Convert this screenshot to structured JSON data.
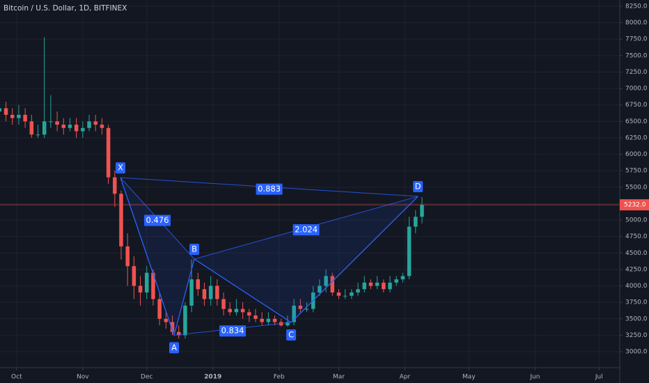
{
  "chart_data": {
    "type": "candlestick",
    "title": "Bitcoin / U.S. Dollar, 1D, BITFINEX",
    "open": [
      6650,
      6700,
      6600,
      6550,
      6600,
      6500,
      6300,
      6300,
      6500,
      6500,
      6450,
      6400,
      6450,
      6350,
      6400,
      6500,
      6450,
      6400,
      5650,
      5400,
      4600,
      4300,
      4000,
      3900,
      4200,
      3800,
      3500,
      3450,
      3300,
      3250,
      3700,
      4100,
      3950,
      3800,
      4000,
      3800,
      3650,
      3600,
      3650,
      3600,
      3550,
      3500,
      3450,
      3500,
      3450,
      3400,
      3450,
      3700,
      3650,
      3650,
      3900,
      4000,
      4150,
      3900,
      3850,
      3850,
      3900,
      3950,
      4050,
      4000,
      4050,
      3950,
      4050,
      4100,
      4150,
      4900,
      5050
    ],
    "high": [
      6850,
      6800,
      6700,
      6750,
      6700,
      6600,
      6450,
      7780,
      6900,
      6650,
      6550,
      6550,
      6550,
      6500,
      6600,
      6600,
      6550,
      6450,
      5750,
      5450,
      4800,
      4450,
      4150,
      4300,
      4250,
      3900,
      3600,
      3550,
      3400,
      3750,
      4400,
      4200,
      4050,
      4150,
      4100,
      3900,
      3750,
      3800,
      3750,
      3650,
      3650,
      3600,
      3600,
      3550,
      3500,
      3550,
      3800,
      3800,
      3750,
      4000,
      4100,
      4250,
      4200,
      3950,
      3950,
      3950,
      4050,
      4150,
      4100,
      4150,
      4100,
      4150,
      4150,
      4200,
      5050,
      5150,
      5350
    ],
    "low": [
      6550,
      6500,
      6450,
      6450,
      6400,
      6250,
      6250,
      6250,
      6400,
      6350,
      6300,
      6350,
      6250,
      6250,
      6350,
      6350,
      6300,
      5550,
      5200,
      4400,
      4000,
      3800,
      3700,
      3800,
      3700,
      3400,
      3350,
      3250,
      3200,
      3200,
      3600,
      3850,
      3700,
      3700,
      3700,
      3550,
      3550,
      3550,
      3500,
      3450,
      3450,
      3400,
      3400,
      3400,
      3380,
      3380,
      3400,
      3600,
      3600,
      3600,
      3850,
      3900,
      3850,
      3800,
      3800,
      3800,
      3850,
      3900,
      3950,
      3950,
      3900,
      3900,
      4000,
      4050,
      4100,
      4800,
      4950
    ],
    "close": [
      6700,
      6600,
      6550,
      6600,
      6500,
      6300,
      6300,
      6500,
      6500,
      6450,
      6400,
      6450,
      6350,
      6400,
      6500,
      6450,
      6400,
      5650,
      5400,
      4600,
      4300,
      4000,
      3900,
      4200,
      3800,
      3500,
      3450,
      3300,
      3250,
      3700,
      4100,
      3950,
      3800,
      4000,
      3800,
      3650,
      3600,
      3650,
      3600,
      3550,
      3500,
      3450,
      3500,
      3450,
      3400,
      3450,
      3700,
      3650,
      3650,
      3900,
      4000,
      4150,
      3900,
      3850,
      3850,
      3900,
      3950,
      4050,
      4000,
      4050,
      3950,
      4050,
      4100,
      4150,
      4900,
      5050,
      5232
    ],
    "up_color": "#26a69a",
    "down_color": "#ef5350",
    "xlim": [
      0.07,
      96.9
    ],
    "ylim": [
      2757,
      8345
    ],
    "xticks": [
      {
        "value": 2.67,
        "label": "Oct"
      },
      {
        "value": 13,
        "label": "Nov"
      },
      {
        "value": 23,
        "label": "Dec"
      },
      {
        "value": 33.33,
        "label": "2019"
      },
      {
        "value": 43.67,
        "label": "Feb"
      },
      {
        "value": 53,
        "label": "Mar"
      },
      {
        "value": 63.33,
        "label": "Apr"
      },
      {
        "value": 73.33,
        "label": "May"
      },
      {
        "value": 83.67,
        "label": "Jun"
      },
      {
        "value": 93.67,
        "label": "Jul"
      }
    ],
    "yticks": [
      {
        "value": 3000,
        "label": "3000.0"
      },
      {
        "value": 3250,
        "label": "3250.0"
      },
      {
        "value": 3500,
        "label": "3500.0"
      },
      {
        "value": 3750,
        "label": "3750.0"
      },
      {
        "value": 4000,
        "label": "4000.0"
      },
      {
        "value": 4250,
        "label": "4250.0"
      },
      {
        "value": 4500,
        "label": "4500.0"
      },
      {
        "value": 4750,
        "label": "4750.0"
      },
      {
        "value": 5000,
        "label": "5000.0"
      },
      {
        "value": 5250,
        "label": "5250.0"
      },
      {
        "value": 5500,
        "label": "5500.0"
      },
      {
        "value": 5750,
        "label": "5750.0"
      },
      {
        "value": 6000,
        "label": "6000.0"
      },
      {
        "value": 6250,
        "label": "6250.0"
      },
      {
        "value": 6500,
        "label": "6500.0"
      },
      {
        "value": 6750,
        "label": "6750.0"
      },
      {
        "value": 7000,
        "label": "7000.0"
      },
      {
        "value": 7250,
        "label": "7250.0"
      },
      {
        "value": 7500,
        "label": "7500.0"
      },
      {
        "value": 7750,
        "label": "7750.0"
      },
      {
        "value": 8000,
        "label": "8000.0"
      },
      {
        "value": 8250,
        "label": "8250.0"
      }
    ],
    "grid": true,
    "last_price": {
      "value": 5232,
      "label": "5232.0",
      "color": "#ef5350"
    },
    "pattern": {
      "color": "#2962ff",
      "points": [
        {
          "label": "X",
          "x": 18.89,
          "y": 5645
        },
        {
          "label": "A",
          "x": 27.27,
          "y": 3250
        },
        {
          "label": "B",
          "x": 30.43,
          "y": 4408
        },
        {
          "label": "C",
          "x": 45.56,
          "y": 3445
        },
        {
          "label": "D",
          "x": 65.37,
          "y": 5360
        }
      ],
      "ratios": [
        0.476,
        0.834,
        2.024,
        0.883
      ]
    }
  }
}
